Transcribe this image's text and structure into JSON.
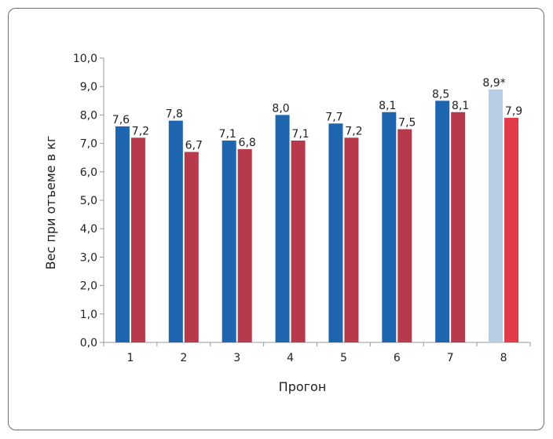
{
  "chart_data": {
    "type": "bar",
    "title": "",
    "xlabel": "Прогон",
    "ylabel": "Вес при отъеме в кг",
    "ylim": [
      0,
      10
    ],
    "yticks": [
      "0,0",
      "1,0",
      "2,0",
      "3,0",
      "4,0",
      "5,0",
      "6,0",
      "7,0",
      "8,0",
      "9,0",
      "10,0"
    ],
    "categories": [
      "1",
      "2",
      "3",
      "4",
      "5",
      "6",
      "7",
      "8"
    ],
    "series": [
      {
        "values": [
          7.6,
          7.8,
          7.1,
          8.0,
          7.7,
          8.1,
          8.5,
          8.9
        ],
        "labels": [
          "7,6",
          "7,8",
          "7,1",
          "8,0",
          "7,7",
          "8,1",
          "8,5",
          "8,9*"
        ],
        "colors": [
          "#1f66b0",
          "#1f66b0",
          "#1f66b0",
          "#1f66b0",
          "#1f66b0",
          "#1f66b0",
          "#1f66b0",
          "#b7cde4"
        ]
      },
      {
        "values": [
          7.2,
          6.7,
          6.8,
          7.1,
          7.2,
          7.5,
          8.1,
          7.9
        ],
        "labels": [
          "7,2",
          "6,7",
          "6,8",
          "7,1",
          "7,2",
          "7,5",
          "8,1",
          "7,9"
        ],
        "colors": [
          "#b73a4c",
          "#b73a4c",
          "#b73a4c",
          "#b73a4c",
          "#b73a4c",
          "#b73a4c",
          "#b73a4c",
          "#e23a48"
        ]
      }
    ],
    "grid": false,
    "legend": "none"
  }
}
